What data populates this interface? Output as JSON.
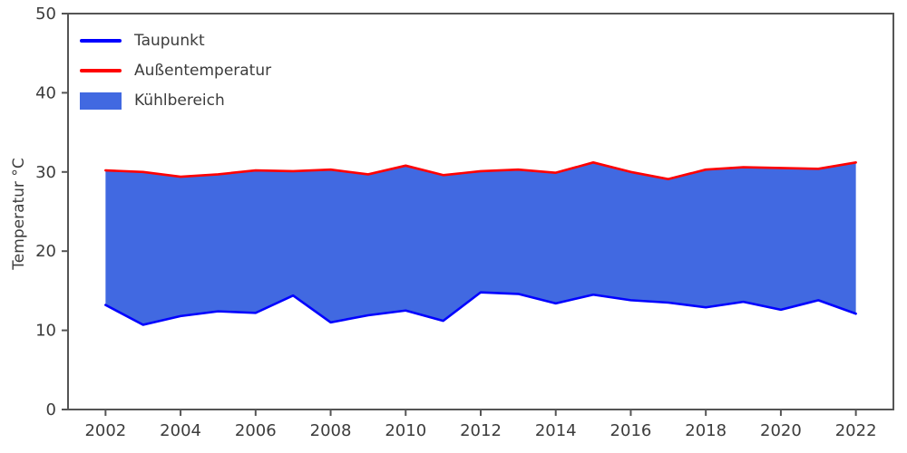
{
  "style": {
    "background": "#ffffff",
    "axis_color": "#555555",
    "text_color": "#3c3c3c"
  },
  "chart_data": {
    "type": "area",
    "title": "",
    "xlabel": "",
    "ylabel": "Temperatur °C",
    "x": [
      2002,
      2003,
      2004,
      2005,
      2006,
      2007,
      2008,
      2009,
      2010,
      2011,
      2012,
      2013,
      2014,
      2015,
      2016,
      2017,
      2018,
      2019,
      2020,
      2021,
      2022
    ],
    "series": [
      {
        "name": "Taupunkt",
        "color": "#0000ff",
        "values": [
          13.2,
          10.7,
          11.8,
          12.4,
          12.2,
          14.4,
          11.0,
          11.9,
          12.5,
          11.2,
          14.8,
          14.6,
          13.4,
          14.5,
          13.8,
          13.5,
          12.9,
          13.6,
          12.6,
          13.8,
          12.1
        ]
      },
      {
        "name": "Außentemperatur",
        "color": "#ff0000",
        "values": [
          30.2,
          30.0,
          29.4,
          29.7,
          30.2,
          30.1,
          30.3,
          29.7,
          30.8,
          29.6,
          30.1,
          30.3,
          29.9,
          31.2,
          30.0,
          29.1,
          30.3,
          30.6,
          30.5,
          30.4,
          31.2
        ]
      }
    ],
    "area": {
      "name": "Kühlbereich",
      "color": "#4169e1",
      "between": [
        "Taupunkt",
        "Außentemperatur"
      ]
    },
    "xlim": [
      2001,
      2023
    ],
    "ylim": [
      0,
      50
    ],
    "xticks": [
      2002,
      2004,
      2006,
      2008,
      2010,
      2012,
      2014,
      2016,
      2018,
      2020,
      2022
    ],
    "yticks": [
      0,
      10,
      20,
      30,
      40,
      50
    ],
    "legend_position": "upper left",
    "grid": false
  }
}
